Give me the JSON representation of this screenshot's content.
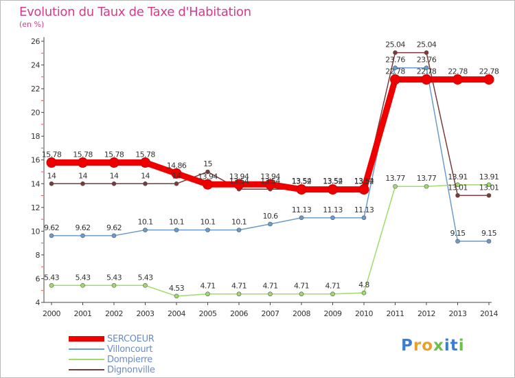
{
  "title": "Evolution du Taux de Taxe d'Habitation",
  "unit_label": "(en %)",
  "logo": {
    "text": "ProXiti",
    "letters": [
      "P",
      "r",
      "o",
      "x",
      "i",
      "t",
      "i"
    ],
    "colors": [
      "#3a7ed8",
      "#e8a02a",
      "#e8a02a",
      "#6cc04a",
      "#3a7ed8",
      "#3a7ed8",
      "#6cc04a"
    ]
  },
  "chart_data": {
    "type": "line",
    "title": "Evolution du Taux de Taxe d'Habitation",
    "ylabel": "(en %)",
    "xlabel": "",
    "x": [
      "2000",
      "2001",
      "2002",
      "2003",
      "2004",
      "2005",
      "2006",
      "2007",
      "2008",
      "2009",
      "2010",
      "2011",
      "2012",
      "2013",
      "2014"
    ],
    "ylim": [
      4,
      26
    ],
    "yticks": [
      4,
      6,
      8,
      10,
      12,
      14,
      16,
      18,
      20,
      22,
      24,
      26
    ],
    "grid": false,
    "legend_position": "bottom-left",
    "series": [
      {
        "name": "SERCOEUR",
        "color": "#ee0000",
        "values": [
          15.78,
          15.78,
          15.78,
          15.78,
          14.86,
          13.94,
          13.94,
          13.94,
          13.52,
          13.52,
          13.52,
          22.78,
          22.78,
          22.78,
          22.78
        ],
        "labels": [
          "15.78",
          "15.78",
          "15.78",
          "15.78",
          "14.86",
          "13.94",
          "13.94",
          "13.94",
          "13.52",
          "13.52",
          "13.52",
          "22.78",
          "22.78",
          "22.78",
          "22.78"
        ]
      },
      {
        "name": "Villoncourt",
        "color": "#6a9ccb",
        "values": [
          9.62,
          9.62,
          9.62,
          10.1,
          10.1,
          10.1,
          10.1,
          10.6,
          11.13,
          11.13,
          11.13,
          23.76,
          23.76,
          9.15,
          9.15
        ],
        "labels": [
          "9.62",
          "9.62",
          "9.62",
          "10.1",
          "10.1",
          "10.1",
          "10.1",
          "10.6",
          "11.13",
          "11.13",
          "11.13",
          "23.76",
          "23.76",
          "9.15",
          "9.15"
        ]
      },
      {
        "name": "Dompierre",
        "color": "#9edc6a",
        "values": [
          5.43,
          5.43,
          5.43,
          5.43,
          4.53,
          4.71,
          4.71,
          4.71,
          4.71,
          4.71,
          4.8,
          13.77,
          13.77,
          13.91,
          13.91
        ],
        "labels": [
          "5.43",
          "5.43",
          "5.43",
          "5.43",
          "4.53",
          "4.71",
          "4.71",
          "4.71",
          "4.71",
          "4.71",
          "4.8",
          "13.77",
          "13.77",
          "13.91",
          "13.91"
        ]
      },
      {
        "name": "Dignonville",
        "color": "#7a3a3a",
        "values": [
          14,
          14,
          14,
          14,
          14,
          15,
          13.54,
          13.54,
          13.54,
          13.54,
          13.54,
          25.04,
          25.04,
          13.01,
          13.01
        ],
        "labels": [
          "14",
          "14",
          "14",
          "14",
          "14",
          "15",
          "13.54",
          "13.54",
          "13.54",
          "13.54",
          "13.54",
          "25.04",
          "25.04",
          "13.01",
          "13.01"
        ]
      }
    ]
  }
}
